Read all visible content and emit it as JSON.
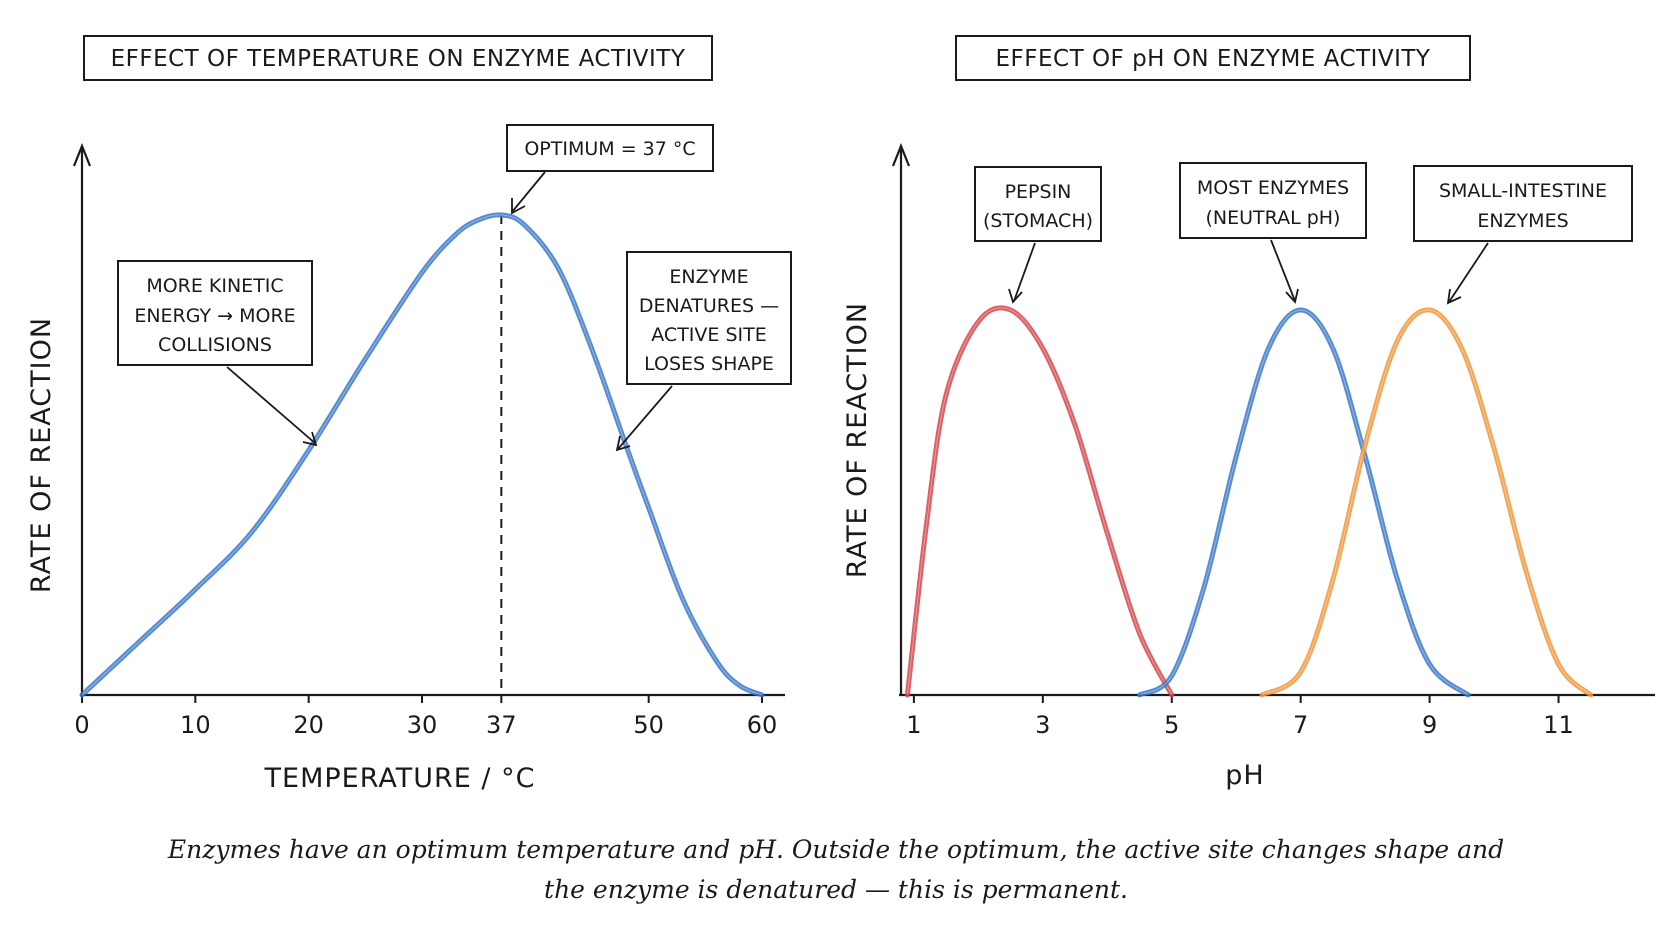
{
  "chart_data": [
    {
      "type": "line",
      "title": "EFFECT OF TEMPERATURE ON ENZYME ACTIVITY",
      "xlabel": "TEMPERATURE / °C",
      "ylabel": "RATE OF REACTION",
      "xlim": [
        0,
        60
      ],
      "ylim": [
        0,
        100
      ],
      "x_ticks": [
        "0",
        "10",
        "20",
        "30",
        "37",
        "50",
        "60"
      ],
      "x_tick_values": [
        0,
        10,
        20,
        30,
        37,
        50,
        60
      ],
      "grid": false,
      "series": [
        {
          "color": "#3a78c9",
          "x": [
            0,
            5,
            10,
            15,
            20,
            25,
            30,
            33,
            35,
            37,
            39,
            42,
            45,
            48,
            50,
            53,
            56,
            58,
            60
          ],
          "y": [
            0,
            11,
            22,
            34,
            51,
            70,
            88,
            96,
            99,
            100,
            98,
            89,
            72,
            52,
            39,
            20,
            7,
            2,
            0
          ]
        }
      ],
      "annotations": [
        {
          "id": "optimum",
          "text": "OPTIMUM = 37 °C",
          "x": 37,
          "y": 100
        },
        {
          "id": "kinetic",
          "lines": [
            "MORE KINETIC",
            "ENERGY → MORE",
            "COLLISIONS"
          ],
          "x": 20,
          "y": 52
        },
        {
          "id": "denature",
          "lines": [
            "ENZYME",
            "DENATURES —",
            "ACTIVE SITE",
            "LOSES SHAPE"
          ],
          "x": 47,
          "y": 51
        }
      ],
      "reference_lines": [
        {
          "x": 37,
          "style": "dashed"
        }
      ]
    },
    {
      "type": "line",
      "title": "EFFECT OF pH ON ENZYME ACTIVITY",
      "xlabel": "pH",
      "ylabel": "RATE OF REACTION",
      "xlim": [
        0.8,
        12
      ],
      "ylim": [
        0,
        100
      ],
      "x_ticks": [
        "1",
        "3",
        "5",
        "7",
        "9",
        "11"
      ],
      "x_tick_values": [
        1,
        3,
        5,
        7,
        9,
        11
      ],
      "grid": false,
      "series": [
        {
          "color": "#d6454a",
          "x": [
            0.9,
            1.2,
            1.5,
            2.0,
            2.5,
            3.0,
            3.5,
            4.0,
            4.5,
            5.0
          ],
          "y": [
            0,
            45,
            78,
            97,
            100,
            90,
            70,
            42,
            16,
            0
          ]
        },
        {
          "color": "#3a78c9",
          "x": [
            4.5,
            5.0,
            5.5,
            6.0,
            6.5,
            7.0,
            7.5,
            8.0,
            8.5,
            9.0,
            9.6
          ],
          "y": [
            0,
            5,
            28,
            62,
            90,
            100,
            90,
            62,
            30,
            8,
            0
          ]
        },
        {
          "color": "#f0963c",
          "x": [
            6.4,
            7.0,
            7.5,
            8.0,
            8.5,
            9.0,
            9.5,
            10.0,
            10.5,
            11.0,
            11.5
          ],
          "y": [
            0,
            6,
            30,
            65,
            92,
            100,
            90,
            64,
            32,
            8,
            0
          ]
        }
      ],
      "annotations": [
        {
          "id": "pepsin",
          "lines": [
            "PEPSIN",
            "(STOMACH)"
          ],
          "x": 2.5,
          "y": 100
        },
        {
          "id": "neutral",
          "lines": [
            "MOST ENZYMES",
            "(NEUTRAL pH)"
          ],
          "x": 7,
          "y": 100
        },
        {
          "id": "intestine",
          "lines": [
            "SMALL-INTESTINE",
            "ENZYMES"
          ],
          "x": 9,
          "y": 100
        }
      ]
    }
  ],
  "caption": [
    "Enzymes have an optimum  temperature and pH. Outside the optimum, the active site changes shape and",
    "the enzyme is denatured — this is permanent."
  ]
}
